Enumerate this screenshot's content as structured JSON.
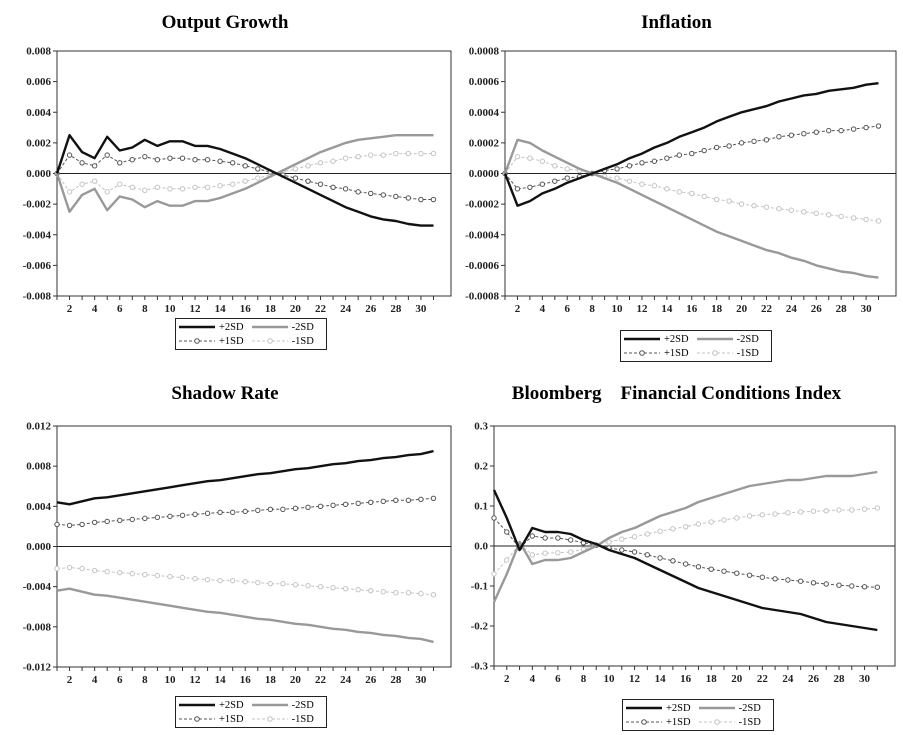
{
  "chart_data": [
    {
      "type": "line",
      "title": "Output Growth",
      "x": [
        1,
        2,
        3,
        4,
        5,
        6,
        7,
        8,
        9,
        10,
        11,
        12,
        13,
        14,
        15,
        16,
        17,
        18,
        19,
        20,
        21,
        22,
        23,
        24,
        25,
        26,
        27,
        28,
        29,
        30,
        31
      ],
      "xticks": [
        "2",
        "4",
        "6",
        "8",
        "10",
        "12",
        "14",
        "16",
        "18",
        "20",
        "22",
        "24",
        "26",
        "28",
        "30"
      ],
      "ylim": [
        -0.008,
        0.008
      ],
      "yticks": [
        "-0.008",
        "-0.006",
        "-0.004",
        "-0.002",
        "0.000",
        "0.002",
        "0.004",
        "0.006",
        "0.008"
      ],
      "series": [
        {
          "name": "+2SD",
          "color": "#111111",
          "values": [
            0.0,
            0.0025,
            0.0014,
            0.001,
            0.0024,
            0.0015,
            0.0017,
            0.0022,
            0.0018,
            0.0021,
            0.0021,
            0.0018,
            0.0018,
            0.0016,
            0.0013,
            0.001,
            0.0006,
            0.0002,
            -0.0002,
            -0.0006,
            -0.001,
            -0.0014,
            -0.0018,
            -0.0022,
            -0.0025,
            -0.0028,
            -0.003,
            -0.0031,
            -0.0033,
            -0.0034,
            -0.0034
          ]
        },
        {
          "name": "-2SD",
          "color": "#999999",
          "values": [
            0.0,
            -0.0025,
            -0.0014,
            -0.001,
            -0.0024,
            -0.0015,
            -0.0017,
            -0.0022,
            -0.0018,
            -0.0021,
            -0.0021,
            -0.0018,
            -0.0018,
            -0.0016,
            -0.0013,
            -0.001,
            -0.0006,
            -0.0002,
            0.0002,
            0.0006,
            0.001,
            0.0014,
            0.0017,
            0.002,
            0.0022,
            0.0023,
            0.0024,
            0.0025,
            0.0025,
            0.0025,
            0.0025
          ]
        },
        {
          "name": "+1SD",
          "color": "#555555",
          "values": [
            0.0,
            0.0012,
            0.0007,
            0.0005,
            0.0012,
            0.0007,
            0.0009,
            0.0011,
            0.0009,
            0.001,
            0.001,
            0.0009,
            0.0009,
            0.0008,
            0.0007,
            0.0005,
            0.0003,
            0.0001,
            -0.0001,
            -0.0003,
            -0.0005,
            -0.0007,
            -0.0009,
            -0.001,
            -0.0012,
            -0.0013,
            -0.0014,
            -0.0015,
            -0.0016,
            -0.0017,
            -0.0017
          ]
        },
        {
          "name": "-1SD",
          "color": "#c4c4c4",
          "values": [
            0.0,
            -0.0012,
            -0.0007,
            -0.0005,
            -0.0012,
            -0.0007,
            -0.0009,
            -0.0011,
            -0.0009,
            -0.001,
            -0.001,
            -0.0009,
            -0.0009,
            -0.0008,
            -0.0007,
            -0.0005,
            -0.0003,
            -0.0001,
            0.0001,
            0.0003,
            0.0005,
            0.0007,
            0.0008,
            0.001,
            0.0011,
            0.0012,
            0.0012,
            0.0013,
            0.0013,
            0.0013,
            0.0013
          ]
        }
      ]
    },
    {
      "type": "line",
      "title": "Inflation",
      "x": [
        1,
        2,
        3,
        4,
        5,
        6,
        7,
        8,
        9,
        10,
        11,
        12,
        13,
        14,
        15,
        16,
        17,
        18,
        19,
        20,
        21,
        22,
        23,
        24,
        25,
        26,
        27,
        28,
        29,
        30,
        31
      ],
      "xticks": [
        "2",
        "4",
        "6",
        "8",
        "10",
        "12",
        "14",
        "16",
        "18",
        "20",
        "22",
        "24",
        "26",
        "28",
        "30"
      ],
      "ylim": [
        -0.0008,
        0.0008
      ],
      "yticks": [
        "-0.0008",
        "-0.0006",
        "-0.0004",
        "-0.0002",
        "0.0000",
        "0.0002",
        "0.0004",
        "0.0006",
        "0.0008"
      ],
      "series": [
        {
          "name": "+2SD",
          "color": "#111111",
          "values": [
            0.0,
            -0.00021,
            -0.00018,
            -0.00013,
            -0.0001,
            -6e-05,
            -3e-05,
            0.0,
            3e-05,
            6e-05,
            0.0001,
            0.00013,
            0.00017,
            0.0002,
            0.00024,
            0.00027,
            0.0003,
            0.00034,
            0.00037,
            0.0004,
            0.00042,
            0.00044,
            0.00047,
            0.00049,
            0.00051,
            0.00052,
            0.00054,
            0.00055,
            0.00056,
            0.00058,
            0.00059
          ]
        },
        {
          "name": "-2SD",
          "color": "#999999",
          "values": [
            0.0,
            0.00022,
            0.0002,
            0.00015,
            0.00011,
            7e-05,
            3e-05,
            0.0,
            -3e-05,
            -6e-05,
            -0.0001,
            -0.00014,
            -0.00018,
            -0.00022,
            -0.00026,
            -0.0003,
            -0.00034,
            -0.00038,
            -0.00041,
            -0.00044,
            -0.00047,
            -0.0005,
            -0.00052,
            -0.00055,
            -0.00057,
            -0.0006,
            -0.00062,
            -0.00064,
            -0.00065,
            -0.00067,
            -0.00068
          ]
        },
        {
          "name": "+1SD",
          "color": "#555555",
          "values": [
            0.0,
            -0.0001,
            -9e-05,
            -7e-05,
            -5e-05,
            -3e-05,
            -2e-05,
            0.0,
            2e-05,
            3e-05,
            5e-05,
            7e-05,
            8e-05,
            0.0001,
            0.00012,
            0.00013,
            0.00015,
            0.00017,
            0.00018,
            0.0002,
            0.00021,
            0.00022,
            0.00024,
            0.00025,
            0.00026,
            0.00027,
            0.00028,
            0.00028,
            0.00029,
            0.0003,
            0.00031
          ]
        },
        {
          "name": "-1SD",
          "color": "#c4c4c4",
          "values": [
            0.0,
            0.00011,
            0.0001,
            8e-05,
            5e-05,
            3e-05,
            2e-05,
            0.0,
            -2e-05,
            -3e-05,
            -5e-05,
            -7e-05,
            -8e-05,
            -0.0001,
            -0.00012,
            -0.00013,
            -0.00015,
            -0.00017,
            -0.00018,
            -0.0002,
            -0.00021,
            -0.00022,
            -0.00023,
            -0.00024,
            -0.00025,
            -0.00026,
            -0.00027,
            -0.00028,
            -0.00029,
            -0.0003,
            -0.00031
          ]
        }
      ]
    },
    {
      "type": "line",
      "title": "Shadow Rate",
      "x": [
        1,
        2,
        3,
        4,
        5,
        6,
        7,
        8,
        9,
        10,
        11,
        12,
        13,
        14,
        15,
        16,
        17,
        18,
        19,
        20,
        21,
        22,
        23,
        24,
        25,
        26,
        27,
        28,
        29,
        30,
        31
      ],
      "xticks": [
        "2",
        "4",
        "6",
        "8",
        "10",
        "12",
        "14",
        "16",
        "18",
        "20",
        "22",
        "24",
        "26",
        "28",
        "30"
      ],
      "ylim": [
        -0.012,
        0.012
      ],
      "yticks": [
        "-0.012",
        "-0.008",
        "-0.004",
        "0.000",
        "0.004",
        "0.008",
        "0.012"
      ],
      "series": [
        {
          "name": "+2SD",
          "color": "#111111",
          "values": [
            0.0044,
            0.0042,
            0.0045,
            0.0048,
            0.0049,
            0.0051,
            0.0053,
            0.0055,
            0.0057,
            0.0059,
            0.0061,
            0.0063,
            0.0065,
            0.0066,
            0.0068,
            0.007,
            0.0072,
            0.0073,
            0.0075,
            0.0077,
            0.0078,
            0.008,
            0.0082,
            0.0083,
            0.0085,
            0.0086,
            0.0088,
            0.0089,
            0.0091,
            0.0092,
            0.0095
          ]
        },
        {
          "name": "-2SD",
          "color": "#999999",
          "values": [
            -0.0044,
            -0.0042,
            -0.0045,
            -0.0048,
            -0.0049,
            -0.0051,
            -0.0053,
            -0.0055,
            -0.0057,
            -0.0059,
            -0.0061,
            -0.0063,
            -0.0065,
            -0.0066,
            -0.0068,
            -0.007,
            -0.0072,
            -0.0073,
            -0.0075,
            -0.0077,
            -0.0078,
            -0.008,
            -0.0082,
            -0.0083,
            -0.0085,
            -0.0086,
            -0.0088,
            -0.0089,
            -0.0091,
            -0.0092,
            -0.0095
          ]
        },
        {
          "name": "+1SD",
          "color": "#555555",
          "values": [
            0.0022,
            0.0021,
            0.0022,
            0.0024,
            0.0025,
            0.0026,
            0.0027,
            0.0028,
            0.0029,
            0.003,
            0.0031,
            0.0032,
            0.0033,
            0.0034,
            0.0034,
            0.0035,
            0.0036,
            0.0037,
            0.0037,
            0.0038,
            0.0039,
            0.004,
            0.0041,
            0.0042,
            0.0043,
            0.0044,
            0.0045,
            0.0046,
            0.0046,
            0.0047,
            0.0048
          ]
        },
        {
          "name": "-1SD",
          "color": "#c4c4c4",
          "values": [
            -0.0022,
            -0.0021,
            -0.0022,
            -0.0024,
            -0.0025,
            -0.0026,
            -0.0027,
            -0.0028,
            -0.0029,
            -0.003,
            -0.0031,
            -0.0032,
            -0.0033,
            -0.0034,
            -0.0034,
            -0.0035,
            -0.0036,
            -0.0037,
            -0.0037,
            -0.0038,
            -0.0039,
            -0.004,
            -0.0041,
            -0.0042,
            -0.0043,
            -0.0044,
            -0.0045,
            -0.0046,
            -0.0046,
            -0.0047,
            -0.0048
          ]
        }
      ]
    },
    {
      "type": "line",
      "title": "Bloomberg    Financial Conditions Index",
      "x": [
        1,
        2,
        3,
        4,
        5,
        6,
        7,
        8,
        9,
        10,
        11,
        12,
        13,
        14,
        15,
        16,
        17,
        18,
        19,
        20,
        21,
        22,
        23,
        24,
        25,
        26,
        27,
        28,
        29,
        30,
        31
      ],
      "xticks": [
        "2",
        "4",
        "6",
        "8",
        "10",
        "12",
        "14",
        "16",
        "18",
        "20",
        "22",
        "24",
        "26",
        "28",
        "30"
      ],
      "ylim": [
        -0.3,
        0.3
      ],
      "yticks": [
        "-0.3",
        "-0.2",
        "-0.1",
        "0.0",
        "0.1",
        "0.2",
        "0.3"
      ],
      "series": [
        {
          "name": "+2SD",
          "color": "#111111",
          "values": [
            0.14,
            0.07,
            -0.01,
            0.045,
            0.035,
            0.035,
            0.03,
            0.015,
            0.005,
            -0.01,
            -0.02,
            -0.03,
            -0.045,
            -0.06,
            -0.075,
            -0.09,
            -0.105,
            -0.115,
            -0.125,
            -0.135,
            -0.145,
            -0.155,
            -0.16,
            -0.165,
            -0.17,
            -0.18,
            -0.19,
            -0.195,
            -0.2,
            -0.205,
            -0.21
          ]
        },
        {
          "name": "-2SD",
          "color": "#999999",
          "values": [
            -0.14,
            -0.07,
            0.01,
            -0.045,
            -0.035,
            -0.035,
            -0.03,
            -0.015,
            0.0,
            0.02,
            0.035,
            0.045,
            0.06,
            0.075,
            0.085,
            0.095,
            0.11,
            0.12,
            0.13,
            0.14,
            0.15,
            0.155,
            0.16,
            0.165,
            0.165,
            0.17,
            0.175,
            0.175,
            0.175,
            0.18,
            0.185
          ]
        },
        {
          "name": "+1SD",
          "color": "#555555",
          "values": [
            0.07,
            0.035,
            -0.005,
            0.025,
            0.02,
            0.02,
            0.015,
            0.008,
            0.002,
            -0.005,
            -0.01,
            -0.015,
            -0.022,
            -0.03,
            -0.037,
            -0.045,
            -0.052,
            -0.058,
            -0.063,
            -0.068,
            -0.073,
            -0.078,
            -0.082,
            -0.085,
            -0.088,
            -0.092,
            -0.095,
            -0.098,
            -0.1,
            -0.102,
            -0.103
          ]
        },
        {
          "name": "-1SD",
          "color": "#c4c4c4",
          "values": [
            -0.07,
            -0.035,
            0.005,
            -0.022,
            -0.018,
            -0.017,
            -0.015,
            -0.008,
            0.002,
            0.01,
            0.017,
            0.023,
            0.03,
            0.037,
            0.043,
            0.048,
            0.055,
            0.06,
            0.065,
            0.07,
            0.075,
            0.078,
            0.08,
            0.083,
            0.085,
            0.087,
            0.088,
            0.09,
            0.09,
            0.092,
            0.095
          ]
        }
      ]
    }
  ],
  "legend": {
    "plus2": "+2SD",
    "minus2": "-2SD",
    "plus1": "+1SD",
    "minus1": "-1SD"
  }
}
